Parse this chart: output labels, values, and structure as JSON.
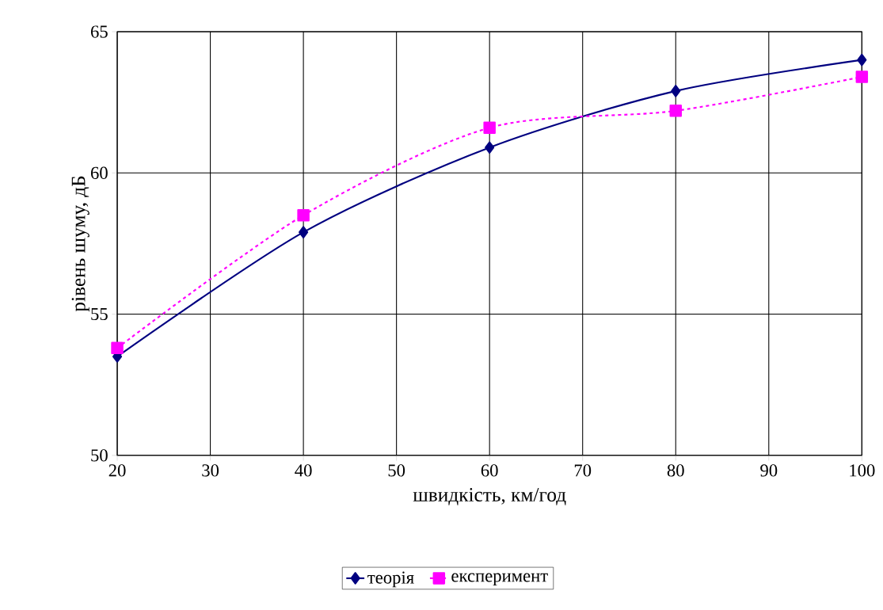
{
  "chart_data": {
    "type": "line",
    "xlabel": "швидкість, км/год",
    "ylabel": "рівень шуму, дБ",
    "x": [
      20,
      40,
      60,
      80,
      100
    ],
    "series": [
      {
        "name": "теорія",
        "color": "#000080",
        "values": [
          53.5,
          57.9,
          60.9,
          62.9,
          64.0
        ],
        "marker": "diamond",
        "line_style": "solid"
      },
      {
        "name": "експеримент",
        "color": "#ff00ff",
        "values": [
          53.8,
          58.5,
          61.6,
          62.2,
          63.4
        ],
        "marker": "square",
        "line_style": "dashed"
      }
    ],
    "xlim": [
      20,
      100
    ],
    "xticks": [
      20,
      30,
      40,
      50,
      60,
      70,
      80,
      90,
      100
    ],
    "ylim": [
      50,
      65
    ],
    "yticks": [
      50,
      55,
      60,
      65
    ],
    "grid": true,
    "legend": "bottom"
  }
}
